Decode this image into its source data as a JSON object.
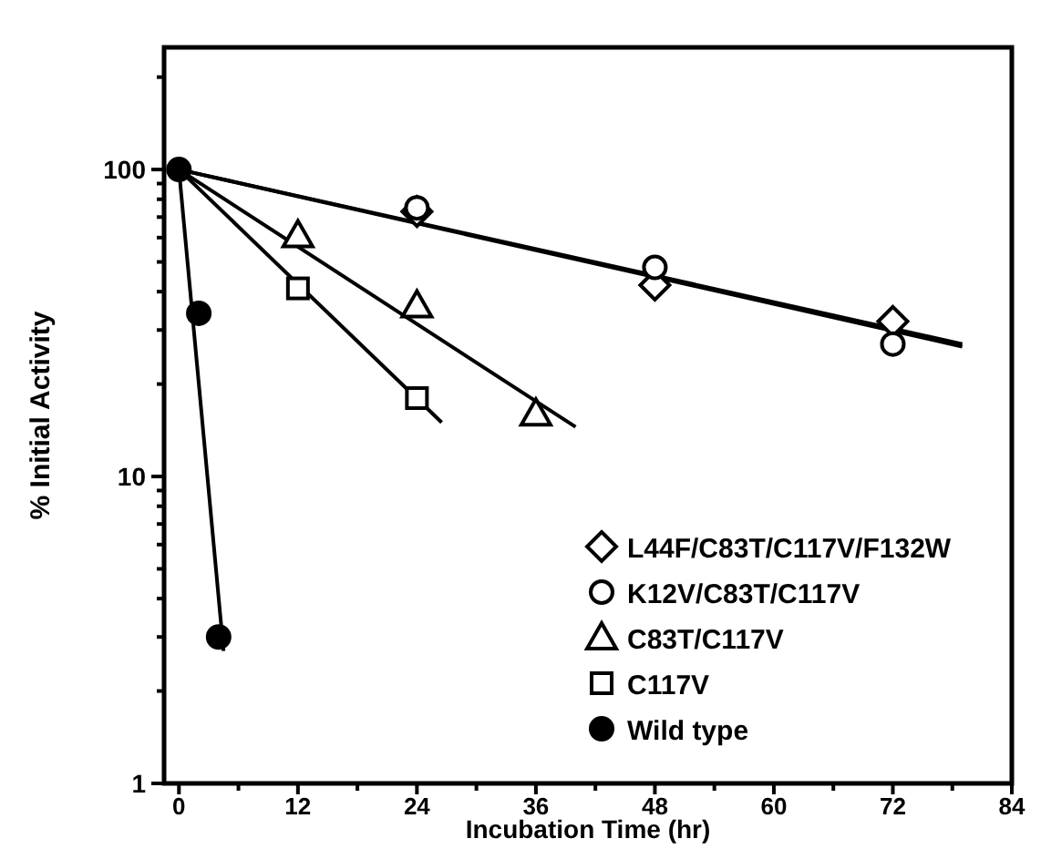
{
  "chart_data": {
    "type": "scatter",
    "xlabel": "Incubation Time (hr)",
    "ylabel": "% Initial Activity",
    "log": "y",
    "xlim": [
      -1.5,
      84
    ],
    "ylim": [
      1,
      250
    ],
    "xticks": [
      0,
      {
        "value": 6,
        "label": null
      },
      12,
      {
        "value": 18,
        "label": null
      },
      24,
      {
        "value": 30,
        "label": null
      },
      36,
      {
        "value": 42,
        "label": null
      },
      48,
      {
        "value": 54,
        "label": null
      },
      60,
      {
        "value": 66,
        "label": null
      },
      72,
      {
        "value": 78,
        "label": null
      },
      84
    ],
    "yticks": [
      1,
      {
        "value": 2,
        "label": null
      },
      {
        "value": 3,
        "label": null
      },
      {
        "value": 4,
        "label": null
      },
      {
        "value": 5,
        "label": null
      },
      {
        "value": 6,
        "label": null
      },
      {
        "value": 7,
        "label": null
      },
      {
        "value": 8,
        "label": null
      },
      {
        "value": 9,
        "label": null
      },
      10,
      {
        "value": 20,
        "label": null
      },
      {
        "value": 30,
        "label": null
      },
      {
        "value": 40,
        "label": null
      },
      {
        "value": 50,
        "label": null
      },
      {
        "value": 60,
        "label": null
      },
      {
        "value": 70,
        "label": null
      },
      {
        "value": 80,
        "label": null
      },
      {
        "value": 90,
        "label": null
      },
      100,
      {
        "value": 200,
        "label": null
      }
    ],
    "grid": false,
    "legend": "bottom right",
    "series": [
      {
        "name": "L44F/C83T/C117V/F132W",
        "color": "#000000",
        "marker": "diamond",
        "x": [
          24,
          48,
          72
        ],
        "values": [
          73,
          42,
          32
        ]
      },
      {
        "name": "K12V/C83T/C117V",
        "color": "#000000",
        "marker": "circle",
        "x": [
          24,
          48,
          72
        ],
        "values": [
          75,
          48,
          27
        ]
      },
      {
        "name": "C83T/C117V",
        "color": "#000000",
        "marker": "triangle",
        "x": [
          12,
          24,
          36
        ],
        "values": [
          61,
          36,
          16
        ]
      },
      {
        "name": "C117V",
        "color": "#000000",
        "marker": "square",
        "x": [
          12,
          24
        ],
        "values": [
          41,
          18
        ]
      },
      {
        "name": "Wild type",
        "color": "#000000",
        "colors": [
          "#000000",
          "#000000",
          "#000000"
        ],
        "marker": "circle",
        "x": [
          0,
          2,
          4
        ],
        "values": [
          100,
          34,
          3
        ]
      },
      {
        "type": "line",
        "color": "#000000",
        "marker": "none",
        "x": [
          0,
          79
        ],
        "values": [
          100,
          27
        ]
      },
      {
        "type": "line",
        "color": "#000000",
        "marker": "none",
        "x": [
          0,
          79
        ],
        "values": [
          100,
          26.5
        ]
      },
      {
        "type": "line",
        "color": "#000000",
        "marker": "none",
        "x": [
          0,
          40
        ],
        "values": [
          100,
          14.5
        ]
      },
      {
        "type": "line",
        "color": "#000000",
        "marker": "none",
        "x": [
          0,
          26.5
        ],
        "values": [
          100,
          15
        ]
      },
      {
        "type": "line",
        "color": "#000000",
        "marker": "none",
        "x": [
          0,
          4.5
        ],
        "values": [
          100,
          2.7
        ]
      }
    ]
  }
}
